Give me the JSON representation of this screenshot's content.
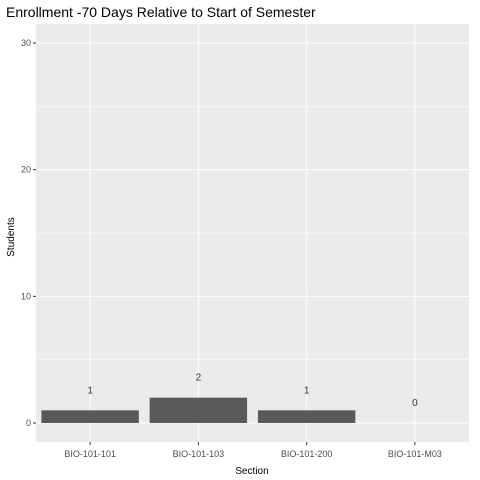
{
  "chart_data": {
    "type": "bar",
    "title": "Enrollment -70 Days Relative to Start of Semester",
    "xlabel": "Section",
    "ylabel": "Students",
    "categories": [
      "BIO-101-101",
      "BIO-101-103",
      "BIO-101-200",
      "BIO-101-M03"
    ],
    "values": [
      1,
      2,
      1,
      0
    ],
    "data_labels": [
      "1",
      "2",
      "1",
      "0"
    ],
    "ylim": [
      -1.5,
      31.5
    ],
    "yticks": [
      0,
      10,
      20,
      30
    ],
    "grid": true,
    "legend": "none",
    "colors": {
      "bar": "#595959",
      "panel": "#ebebeb",
      "grid_major": "#ffffff"
    }
  }
}
